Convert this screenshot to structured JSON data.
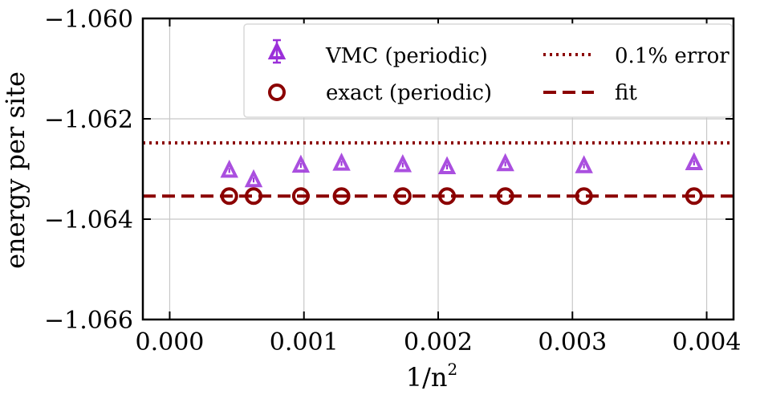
{
  "chart_data": {
    "type": "scatter",
    "title": "",
    "xlabel": "1/n",
    "xlabel_exponent": "2",
    "ylabel": "energy per site",
    "xlim": [
      -0.0002,
      0.0042
    ],
    "ylim": [
      -1.066,
      -1.06
    ],
    "xticks": [
      0.0,
      0.001,
      0.002,
      0.003,
      0.004
    ],
    "xtick_labels": [
      "0.000",
      "0.001",
      "0.002",
      "0.003",
      "0.004"
    ],
    "yticks": [
      -1.06,
      -1.062,
      -1.064,
      -1.066
    ],
    "ytick_labels": [
      "−1.060",
      "−1.062",
      "−1.064",
      "−1.066"
    ],
    "grid": true,
    "legend_position": "top-right",
    "series": [
      {
        "name": "VMC (periodic)",
        "kind": "triangle-with-errorbar",
        "color": "#9b30d9",
        "x": [
          0.000444,
          0.000625,
          0.000977,
          0.00128,
          0.001736,
          0.002066,
          0.0025,
          0.003086,
          0.003906
        ],
        "y": [
          -1.06303,
          -1.06322,
          -1.06293,
          -1.06289,
          -1.06292,
          -1.06296,
          -1.0629,
          -1.06294,
          -1.06288
        ]
      },
      {
        "name": "exact (periodic)",
        "kind": "open-circle",
        "color": "#8b0000",
        "x": [
          0.000444,
          0.000625,
          0.000977,
          0.00128,
          0.001736,
          0.002066,
          0.0025,
          0.003086,
          0.003906
        ],
        "y": [
          -1.06354,
          -1.06354,
          -1.06354,
          -1.06354,
          -1.06354,
          -1.06354,
          -1.06354,
          -1.06354,
          -1.06354
        ]
      }
    ],
    "hlines": [
      {
        "name": "0.1% error",
        "style": "dotted",
        "color": "#8b0000",
        "y": -1.06248
      },
      {
        "name": "fit",
        "style": "dashed",
        "color": "#8b0000",
        "y": -1.06354
      }
    ],
    "legend": [
      {
        "label": "VMC (periodic)",
        "marker": "triangle"
      },
      {
        "label": "exact (periodic)",
        "marker": "circle"
      },
      {
        "label": "0.1% error",
        "marker": "dotted-line"
      },
      {
        "label": "fit",
        "marker": "dashed-line"
      }
    ]
  }
}
